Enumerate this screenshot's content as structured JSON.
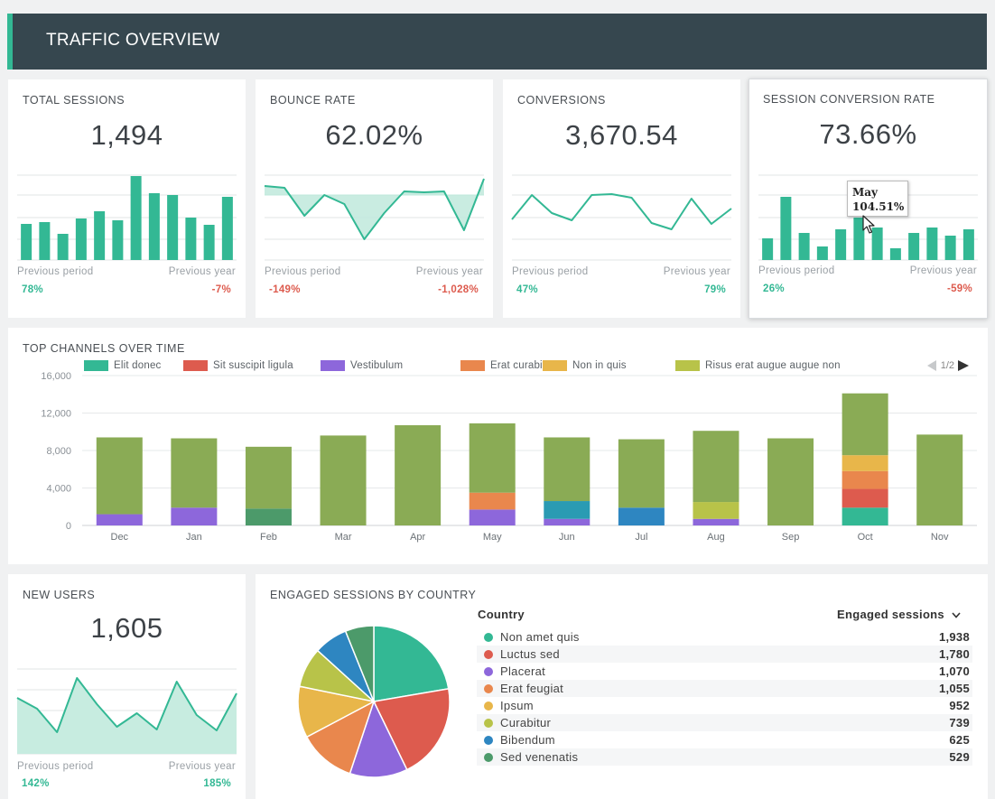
{
  "header": {
    "title": "TRAFFIC OVERVIEW"
  },
  "colors": {
    "accent": "#33b894",
    "header_bg": "#36474f",
    "positive": "#33b894",
    "negative": "#dd5b4e",
    "bar_green": "#8aab55"
  },
  "kpis": [
    {
      "title": "TOTAL SESSIONS",
      "value": "1,494",
      "chart": "bar",
      "series": [
        40,
        42,
        29,
        46,
        54,
        44,
        93,
        74,
        72,
        47,
        39,
        70
      ],
      "prev_period_label": "Previous period",
      "prev_period_value": "78%",
      "prev_year_label": "Previous year",
      "prev_year_value": "-7%"
    },
    {
      "title": "BOUNCE RATE",
      "value": "62.02%",
      "chart": "line-band",
      "series": [
        82,
        80,
        49,
        72,
        62,
        23,
        52,
        76,
        75,
        76,
        33,
        90
      ],
      "baseline": 72,
      "prev_period_label": "Previous period",
      "prev_period_value": "-149%",
      "prev_year_label": "Previous year",
      "prev_year_value": "-1,028%"
    },
    {
      "title": "CONVERSIONS",
      "value": "3,670.54",
      "chart": "line",
      "series": [
        45,
        72,
        52,
        44,
        72,
        73,
        69,
        41,
        34,
        68,
        40,
        57
      ],
      "prev_period_label": "Previous period",
      "prev_period_value": "47%",
      "prev_year_label": "Previous year",
      "prev_year_value": "79%"
    },
    {
      "title": "SESSION CONVERSION RATE",
      "value": "73.66%",
      "chart": "bar",
      "series": [
        24,
        70,
        30,
        15,
        34,
        47,
        36,
        13,
        30,
        36,
        27,
        34
      ],
      "tooltip": {
        "month": "May",
        "value": "104.51%"
      },
      "prev_period_label": "Previous period",
      "prev_period_value": "26%",
      "prev_year_label": "Previous year",
      "prev_year_value": "-59%"
    }
  ],
  "channels": {
    "title": "TOP CHANNELS OVER TIME",
    "pager": "1/2",
    "legend": [
      {
        "name": "Elit donec",
        "color": "#33b894"
      },
      {
        "name": "Sit suscipit ligula",
        "color": "#dd5b4e"
      },
      {
        "name": "Vestibulum",
        "color": "#8d67db"
      },
      {
        "name": "Erat curabitur",
        "color": "#e9874d"
      },
      {
        "name": "Non in quis",
        "color": "#e8b64a"
      },
      {
        "name": "Risus erat augue augue non",
        "color": "#b8c349"
      }
    ]
  },
  "chart_data": {
    "type": "bar",
    "stacked": true,
    "categories": [
      "Dec",
      "Jan",
      "Feb",
      "Mar",
      "Apr",
      "May",
      "Jun",
      "Jul",
      "Aug",
      "Sep",
      "Oct",
      "Nov"
    ],
    "ylim": [
      0,
      16000
    ],
    "yticks": [
      "0",
      "4,000",
      "8,000",
      "12,000",
      "16,000"
    ],
    "grid": true,
    "legend_position": "top",
    "series": [
      {
        "name": "Elit donec",
        "color": "#33b894",
        "values": [
          0,
          0,
          0,
          0,
          0,
          0,
          0,
          0,
          0,
          0,
          1900,
          0
        ]
      },
      {
        "name": "Sit suscipit ligula",
        "color": "#dd5b4e",
        "values": [
          0,
          0,
          0,
          0,
          0,
          0,
          0,
          0,
          0,
          0,
          2000,
          0
        ]
      },
      {
        "name": "Vestibulum",
        "color": "#8d67db",
        "values": [
          1200,
          1900,
          0,
          0,
          0,
          1700,
          700,
          0,
          700,
          0,
          0,
          0
        ]
      },
      {
        "name": "Erat curabitur",
        "color": "#e9874d",
        "values": [
          0,
          0,
          0,
          0,
          0,
          1800,
          0,
          0,
          0,
          0,
          1900,
          0
        ]
      },
      {
        "name": "Non in quis",
        "color": "#e8b64a",
        "values": [
          0,
          0,
          0,
          0,
          0,
          0,
          0,
          0,
          0,
          0,
          1700,
          0
        ]
      },
      {
        "name": "Risus erat augue augue non",
        "color": "#b8c349",
        "values": [
          0,
          0,
          0,
          0,
          0,
          0,
          0,
          0,
          1800,
          0,
          0,
          0
        ]
      },
      {
        "name": "",
        "color": "#2a9bb3",
        "values": [
          0,
          0,
          0,
          0,
          0,
          0,
          1900,
          0,
          0,
          0,
          0,
          0
        ]
      },
      {
        "name": "",
        "color": "#2e86c1",
        "values": [
          0,
          0,
          0,
          0,
          0,
          0,
          0,
          1900,
          0,
          0,
          0,
          0
        ]
      },
      {
        "name": "",
        "color": "#4c9a6a",
        "values": [
          0,
          0,
          1800,
          0,
          0,
          0,
          0,
          0,
          0,
          0,
          0,
          0
        ]
      },
      {
        "name": "",
        "color": "#8aab55",
        "values": [
          8200,
          7400,
          6600,
          9600,
          10700,
          7400,
          6800,
          7300,
          7600,
          9300,
          6600,
          9700
        ]
      }
    ]
  },
  "new_users": {
    "title": "NEW USERS",
    "value": "1,605",
    "series": [
      62,
      50,
      24,
      84,
      55,
      30,
      45,
      27,
      80,
      43,
      26,
      67
    ],
    "prev_period_label": "Previous period",
    "prev_period_value": "142%",
    "prev_year_label": "Previous year",
    "prev_year_value": "185%"
  },
  "countries": {
    "title": "ENGAGED SESSIONS BY COUNTRY",
    "col_country": "Country",
    "col_sessions": "Engaged sessions",
    "rows": [
      {
        "name": "Non amet quis",
        "value": "1,938",
        "num": 1938,
        "color": "#33b894"
      },
      {
        "name": "Luctus sed",
        "value": "1,780",
        "num": 1780,
        "color": "#dd5b4e"
      },
      {
        "name": "Placerat",
        "value": "1,070",
        "num": 1070,
        "color": "#8d67db"
      },
      {
        "name": "Erat feugiat",
        "value": "1,055",
        "num": 1055,
        "color": "#e9874d"
      },
      {
        "name": "Ipsum",
        "value": "952",
        "num": 952,
        "color": "#e8b64a"
      },
      {
        "name": "Curabitur",
        "value": "739",
        "num": 739,
        "color": "#b8c349"
      },
      {
        "name": "Bibendum",
        "value": "625",
        "num": 625,
        "color": "#2e86c1"
      },
      {
        "name": "Sed venenatis",
        "value": "529",
        "num": 529,
        "color": "#4c9a6a"
      }
    ]
  }
}
